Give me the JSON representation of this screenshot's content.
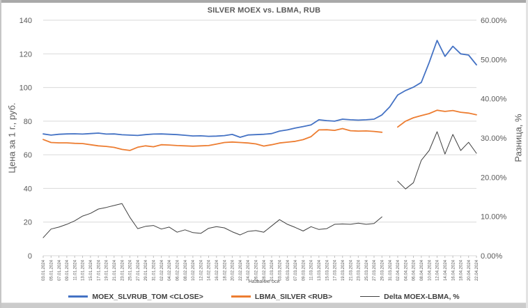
{
  "chart_data": {
    "type": "line",
    "title": "SILVER MOEX vs. LBMA, RUB",
    "x_axis_label": "Название оси",
    "grid": true,
    "legend_position": "bottom",
    "y_left": {
      "label": "Цена за 1 г., руб.",
      "min": 0,
      "max": 140,
      "step": 20
    },
    "y_right": {
      "label": "Разница, %",
      "min": 0,
      "max": 60,
      "step": 10,
      "unit": "%",
      "tick_format": "0.00%"
    },
    "categories": [
      "03.01.2024",
      "05.01.2024",
      "07.01.2024",
      "09.01.2024",
      "11.01.2024",
      "13.01.2024",
      "15.01.2024",
      "17.01.2024",
      "19.01.2024",
      "21.01.2024",
      "23.01.2024",
      "25.01.2024",
      "27.01.2024",
      "29.01.2024",
      "31.01.2024",
      "02.02.2024",
      "04.02.2024",
      "06.02.2024",
      "08.02.2024",
      "10.02.2024",
      "12.02.2024",
      "14.02.2024",
      "16.02.2024",
      "18.02.2024",
      "20.02.2024",
      "22.02.2024",
      "24.02.2024",
      "26.02.2024",
      "28.02.2024",
      "01.03.2024",
      "03.03.2024",
      "05.03.2024",
      "07.03.2024",
      "09.03.2024",
      "11.03.2024",
      "13.03.2024",
      "15.03.2024",
      "17.03.2024",
      "19.03.2024",
      "21.03.2024",
      "23.03.2024",
      "25.03.2024",
      "27.03.2024",
      "29.03.2024",
      "31.03.2024",
      "02.04.2024",
      "04.04.2024",
      "06.04.2024",
      "08.04.2024",
      "10.04.2024",
      "12.04.2024",
      "14.04.2024",
      "16.04.2024",
      "18.04.2024",
      "20.04.2024",
      "22.04.2024"
    ],
    "series": [
      {
        "name": "MOEX_SLVRUB_TOM <CLOSE>",
        "axis": "left",
        "color": "#4472C4",
        "values": [
          72.4,
          71.7,
          72.2,
          72.4,
          72.5,
          72.3,
          72.6,
          72.9,
          72.3,
          72.4,
          71.9,
          71.7,
          71.5,
          72.0,
          72.3,
          72.4,
          72.2,
          72.0,
          71.6,
          71.2,
          71.3,
          71.0,
          71.1,
          71.4,
          72.1,
          70.4,
          71.8,
          72.0,
          72.2,
          72.6,
          74.1,
          74.8,
          75.9,
          76.8,
          77.8,
          80.8,
          80.3,
          80.0,
          81.2,
          80.8,
          80.6,
          80.8,
          81.2,
          83.7,
          88.5,
          95.5,
          98.2,
          100.2,
          103.0,
          114.8,
          128.0,
          118.5,
          124.5,
          120.0,
          119.3,
          113.5
        ]
      },
      {
        "name": "LBMA_SILVER <RUB>",
        "axis": "left",
        "color": "#ED7D31",
        "values": [
          69.1,
          67.3,
          67.1,
          67.1,
          66.8,
          66.7,
          66.0,
          65.3,
          65.0,
          64.4,
          63.2,
          62.6,
          64.5,
          65.3,
          64.8,
          66.0,
          65.8,
          65.5,
          65.3,
          65.1,
          65.3,
          65.5,
          66.4,
          67.3,
          67.6,
          67.3,
          67.0,
          66.5,
          65.2,
          66.0,
          67.0,
          67.5,
          68.0,
          69.0,
          70.8,
          74.8,
          74.9,
          74.5,
          75.6,
          74.3,
          74.1,
          74.2,
          73.9,
          73.4,
          null,
          76.5,
          80.0,
          82.0,
          83.3,
          84.5,
          86.5,
          85.8,
          86.3,
          85.3,
          84.8,
          83.8
        ]
      },
      {
        "name": "Delta MOEX-LBMA, %",
        "axis": "right",
        "color": "#404040",
        "values": [
          4.6,
          6.8,
          7.3,
          8.0,
          8.9,
          10.1,
          10.8,
          11.9,
          12.3,
          12.8,
          13.3,
          9.8,
          6.9,
          7.5,
          7.7,
          6.8,
          7.3,
          6.0,
          6.6,
          5.9,
          5.7,
          7.0,
          7.4,
          7.1,
          6.1,
          5.3,
          6.2,
          6.4,
          6.0,
          7.6,
          9.2,
          8.0,
          7.2,
          6.3,
          7.4,
          6.7,
          6.9,
          8.0,
          8.1,
          8.0,
          8.3,
          8.0,
          8.2,
          9.9,
          null,
          19.0,
          17.0,
          18.6,
          24.3,
          26.8,
          31.6,
          25.9,
          30.9,
          26.8,
          28.9,
          26.1
        ]
      }
    ],
    "colors": {
      "gridline": "#d9d9d9",
      "axis_line": "#d9d9d9",
      "tick_mark": "#bfbfbf",
      "tick_label": "#595959",
      "title_text": "#595959",
      "legend_text": "#404040"
    }
  }
}
